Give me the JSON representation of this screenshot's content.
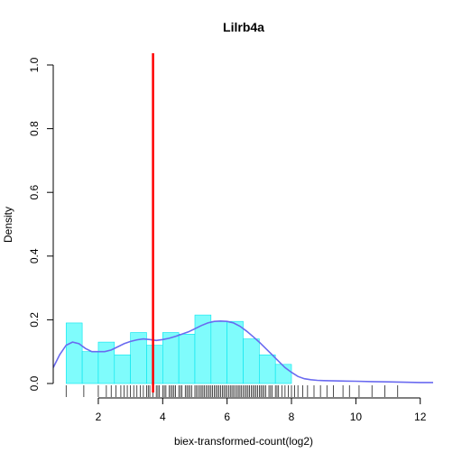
{
  "chart_data": {
    "type": "histogram",
    "title": "Lilrb4a",
    "xlabel": "biex-transformed-count(log2)",
    "ylabel": "Density",
    "xlim": [
      0.6,
      12.4
    ],
    "ylim": [
      0,
      1.0
    ],
    "xticks": [
      2,
      4,
      6,
      8,
      10,
      12
    ],
    "yticks": [
      0.0,
      0.2,
      0.4,
      0.6,
      0.8,
      1.0
    ],
    "histogram": {
      "color": "#7ffcfc",
      "edge_color": "#00e5ee",
      "bins": [
        {
          "x0": 1.0,
          "x1": 1.5,
          "density": 0.19
        },
        {
          "x0": 1.5,
          "x1": 2.0,
          "density": 0.1
        },
        {
          "x0": 2.0,
          "x1": 2.5,
          "density": 0.13
        },
        {
          "x0": 2.5,
          "x1": 3.0,
          "density": 0.09
        },
        {
          "x0": 3.0,
          "x1": 3.5,
          "density": 0.16
        },
        {
          "x0": 3.5,
          "x1": 4.0,
          "density": 0.12
        },
        {
          "x0": 4.0,
          "x1": 4.5,
          "density": 0.16
        },
        {
          "x0": 4.5,
          "x1": 5.0,
          "density": 0.155
        },
        {
          "x0": 5.0,
          "x1": 5.5,
          "density": 0.215
        },
        {
          "x0": 5.5,
          "x1": 6.0,
          "density": 0.195
        },
        {
          "x0": 6.0,
          "x1": 6.5,
          "density": 0.195
        },
        {
          "x0": 6.5,
          "x1": 7.0,
          "density": 0.14
        },
        {
          "x0": 7.0,
          "x1": 7.5,
          "density": 0.09
        },
        {
          "x0": 7.5,
          "x1": 8.0,
          "density": 0.06
        }
      ]
    },
    "density_curve": {
      "color": "#6a6af0",
      "x": [
        0.6,
        0.8,
        1.0,
        1.2,
        1.4,
        1.6,
        1.8,
        2.0,
        2.2,
        2.4,
        2.6,
        2.8,
        3.0,
        3.2,
        3.4,
        3.6,
        3.8,
        4.0,
        4.2,
        4.4,
        4.6,
        4.8,
        5.0,
        5.2,
        5.4,
        5.6,
        5.8,
        6.0,
        6.2,
        6.4,
        6.6,
        6.8,
        7.0,
        7.2,
        7.4,
        7.6,
        7.8,
        8.0,
        8.2,
        8.4,
        8.6,
        8.8,
        9.0,
        9.5,
        10.0,
        10.5,
        11.0,
        11.5,
        12.0,
        12.4
      ],
      "y": [
        0.05,
        0.09,
        0.12,
        0.13,
        0.125,
        0.11,
        0.1,
        0.1,
        0.1,
        0.105,
        0.115,
        0.125,
        0.132,
        0.137,
        0.14,
        0.138,
        0.135,
        0.138,
        0.142,
        0.148,
        0.155,
        0.162,
        0.172,
        0.182,
        0.19,
        0.195,
        0.196,
        0.195,
        0.19,
        0.18,
        0.165,
        0.148,
        0.13,
        0.11,
        0.09,
        0.07,
        0.05,
        0.035,
        0.022,
        0.015,
        0.012,
        0.01,
        0.009,
        0.008,
        0.007,
        0.006,
        0.005,
        0.004,
        0.003,
        0.003
      ]
    },
    "vline": {
      "x": 3.7,
      "color": "#ff0000"
    },
    "rug": {
      "color": "#000000",
      "x": [
        1.0,
        1.55,
        2.0,
        2.25,
        2.4,
        2.55,
        2.7,
        2.8,
        2.9,
        3.0,
        3.1,
        3.2,
        3.3,
        3.4,
        3.5,
        3.55,
        3.6,
        3.7,
        3.8,
        3.85,
        3.9,
        4.0,
        4.05,
        4.1,
        4.2,
        4.25,
        4.3,
        4.35,
        4.4,
        4.5,
        4.55,
        4.6,
        4.7,
        4.75,
        4.8,
        4.85,
        4.9,
        5.0,
        5.05,
        5.1,
        5.15,
        5.2,
        5.25,
        5.3,
        5.35,
        5.4,
        5.45,
        5.5,
        5.55,
        5.6,
        5.65,
        5.7,
        5.75,
        5.8,
        5.85,
        5.9,
        5.95,
        6.0,
        6.05,
        6.1,
        6.15,
        6.2,
        6.25,
        6.3,
        6.35,
        6.4,
        6.45,
        6.5,
        6.55,
        6.6,
        6.65,
        6.7,
        6.75,
        6.8,
        6.85,
        6.9,
        6.95,
        7.0,
        7.05,
        7.1,
        7.15,
        7.2,
        7.3,
        7.35,
        7.4,
        7.5,
        7.55,
        7.6,
        7.7,
        7.8,
        7.9,
        8.0,
        8.1,
        8.2,
        8.35,
        8.5,
        8.7,
        8.9,
        9.1,
        9.3,
        9.6,
        9.8,
        10.1,
        10.5,
        10.9,
        11.3
      ]
    }
  }
}
